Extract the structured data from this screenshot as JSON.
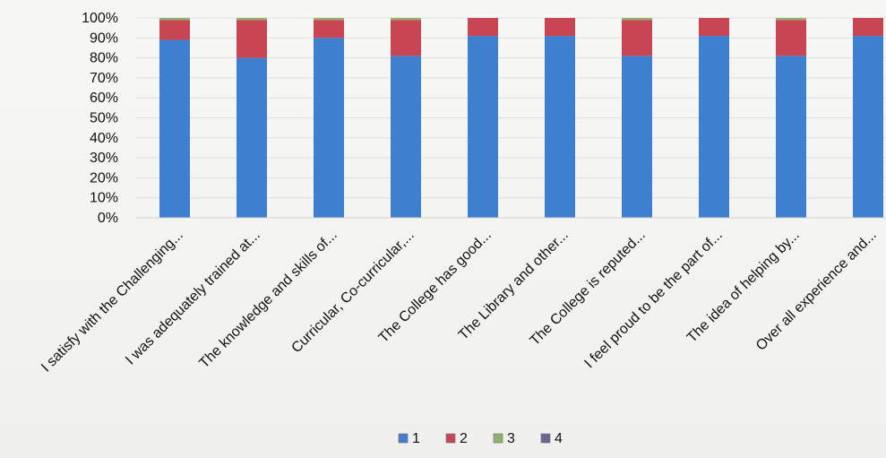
{
  "chart_data": {
    "type": "bar",
    "stacked": true,
    "title": "",
    "xlabel": "",
    "ylabel": "",
    "ylim": [
      0,
      100
    ],
    "y_ticks": [
      "0%",
      "10%",
      "20%",
      "30%",
      "40%",
      "50%",
      "60%",
      "70%",
      "80%",
      "90%",
      "100%"
    ],
    "grid": true,
    "legend_position": "bottom",
    "categories": [
      "I satisfy with the Challenging...",
      "I was adequately trained at...",
      "The knowledge and skills of...",
      "Curricular, Co-curricular,...",
      "The College has good...",
      "The Library and other...",
      "The College is reputed...",
      "I feel proud to be the part of...",
      "The idea of helping by...",
      "Over all experience and..."
    ],
    "series": [
      {
        "name": "1",
        "color": "#3f7fcf",
        "values": [
          89,
          80,
          90,
          81,
          91,
          91,
          81,
          91,
          81,
          91
        ]
      },
      {
        "name": "2",
        "color": "#c84654",
        "values": [
          10,
          19,
          9,
          18,
          9,
          9,
          18,
          9,
          18,
          9
        ]
      },
      {
        "name": "3",
        "color": "#8cb36d",
        "values": [
          1,
          1,
          1,
          1,
          0,
          0,
          1,
          0,
          1,
          0
        ]
      },
      {
        "name": "4",
        "color": "#6f6391",
        "values": [
          0,
          0,
          0,
          0,
          0,
          0,
          0,
          0,
          0,
          0
        ]
      }
    ]
  }
}
